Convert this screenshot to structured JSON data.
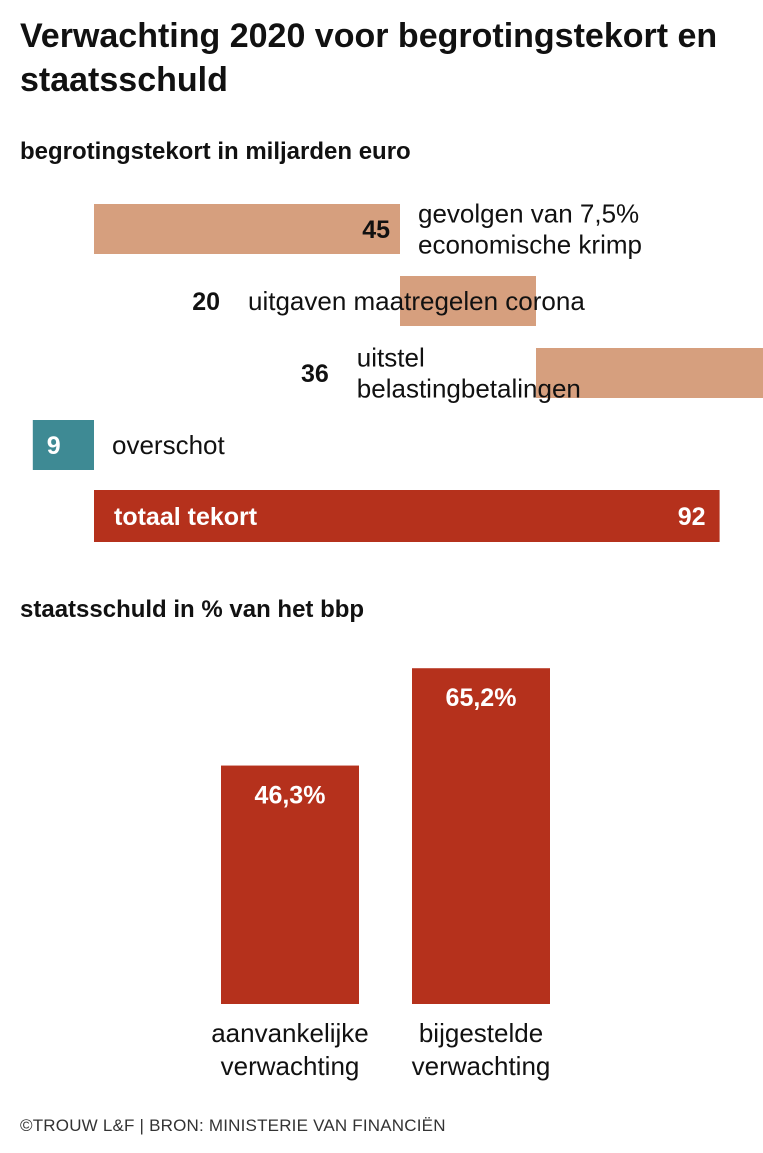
{
  "title": "Verwachting 2020 voor begrotingstekort en staatsschuld",
  "colors": {
    "deficit": "#d69f7e",
    "surplus": "#3e8a94",
    "total": "#b5311c",
    "debt": "#b5311c"
  },
  "chart_data": [
    {
      "type": "bar",
      "orientation": "horizontal",
      "title": "begrotingstekort in miljarden euro",
      "bars": [
        {
          "value": 45,
          "label": "45",
          "caption": [
            "gevolgen van 7,5%",
            "economische krimp"
          ],
          "kind": "deficit"
        },
        {
          "value": 20,
          "label": "20",
          "caption": [
            "uitgaven maatregelen corona"
          ],
          "kind": "deficit"
        },
        {
          "value": 36,
          "label": "36",
          "caption": [
            "uitstel",
            "belastingbetalingen"
          ],
          "kind": "deficit"
        },
        {
          "value": -9,
          "label": "9",
          "caption": [
            "overschot"
          ],
          "kind": "surplus"
        }
      ],
      "total": {
        "value": 92,
        "label": "92",
        "caption": "totaal tekort"
      }
    },
    {
      "type": "bar",
      "title": "staatsschuld in % van het bbp",
      "categories": [
        [
          "aanvankelijke",
          "verwachting"
        ],
        [
          "bijgestelde",
          "verwachting"
        ]
      ],
      "values": [
        46.3,
        65.2
      ],
      "labels": [
        "46,3%",
        "65,2%"
      ]
    }
  ],
  "footer": "©TROUW L&F | BRON: MINISTERIE VAN FINANCIËN"
}
